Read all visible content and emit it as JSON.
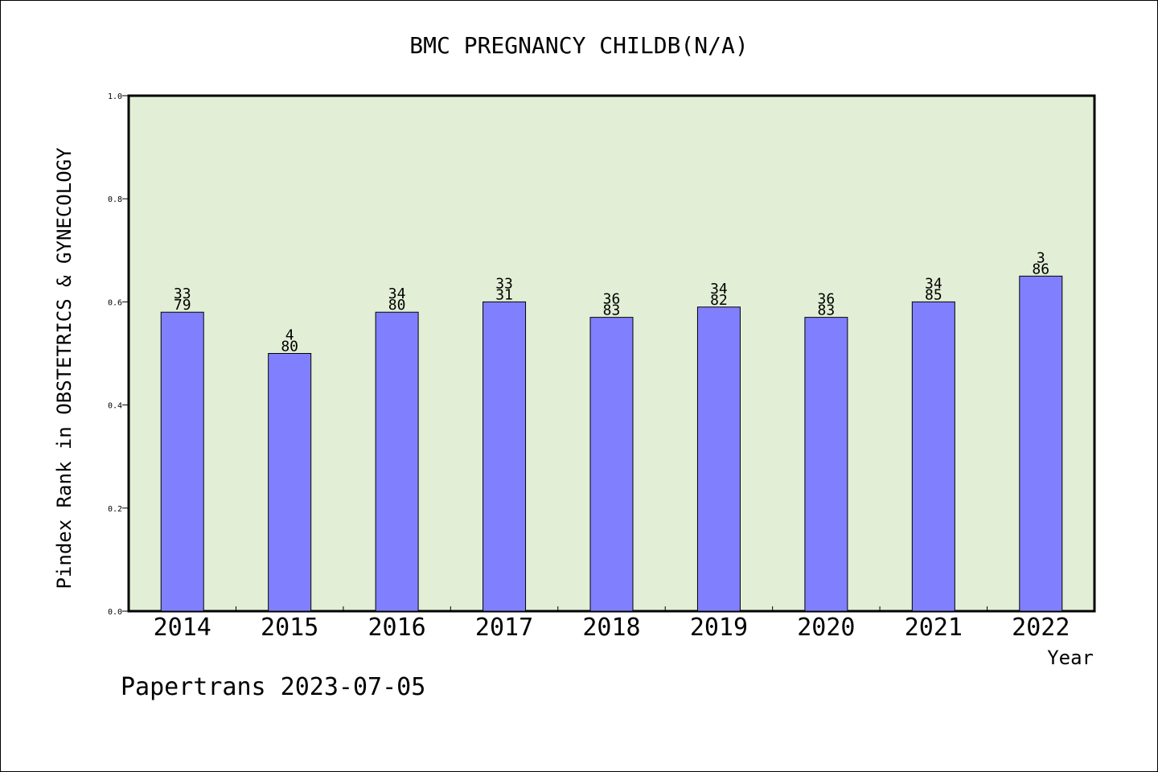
{
  "chart_data": {
    "type": "bar",
    "title": "BMC PREGNANCY CHILDB(N/A)",
    "xlabel": "Year",
    "ylabel": "Pindex Rank in OBSTETRICS & GYNECOLOGY",
    "ylim": [
      0,
      1.0
    ],
    "yticks": [
      "0.0",
      "0.2",
      "0.4",
      "0.6",
      "0.8",
      "1.0"
    ],
    "categories": [
      "2014",
      "2015",
      "2016",
      "2017",
      "2018",
      "2019",
      "2020",
      "2021",
      "2022"
    ],
    "values": [
      0.58,
      0.5,
      0.58,
      0.6,
      0.57,
      0.59,
      0.57,
      0.6,
      0.65
    ],
    "labels_top": [
      "33",
      "4",
      "34",
      "33",
      "36",
      "34",
      "36",
      "34",
      "3"
    ],
    "labels_bottom": [
      "79",
      "80",
      "80",
      "31",
      "83",
      "82",
      "83",
      "85",
      "86"
    ],
    "grid": false,
    "colors": {
      "bar": "#8080ff",
      "plot_bg": "#e2efd6",
      "axis": "#000000"
    }
  },
  "footer": "Papertrans 2023-07-05"
}
